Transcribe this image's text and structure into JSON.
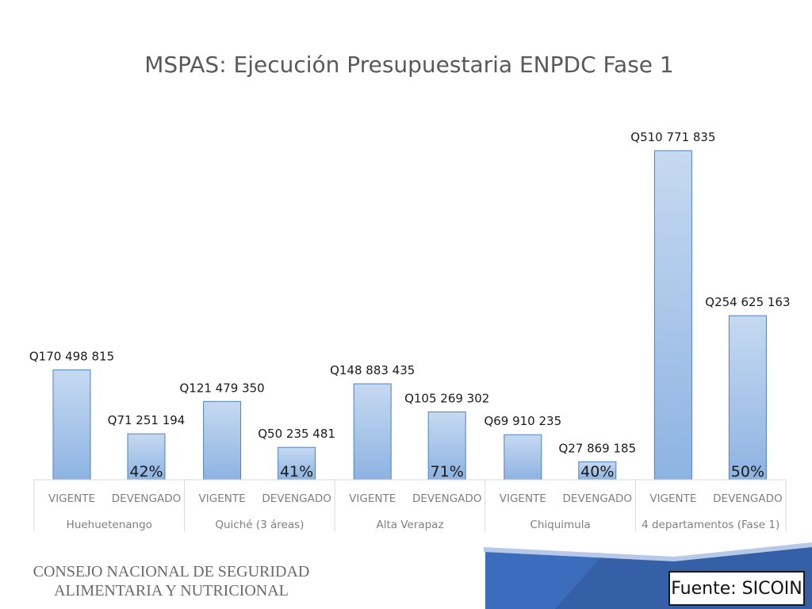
{
  "colors": {
    "bar_top": "#c6d9f1",
    "bar_bottom": "#8db3e2",
    "bar_stroke": "#4f81bd",
    "axis": "#d9d9d9",
    "footer_blue": "#1f4e9c"
  },
  "chart_data": {
    "type": "bar",
    "title": "MSPAS: Ejecución Presupuestaria ENPDC Fase 1",
    "xlabel": "",
    "ylabel": "",
    "ylim": [
      0,
      560000000
    ],
    "grid": false,
    "legend": "none",
    "groups": [
      {
        "name": "Huehuetenango",
        "categories": [
          "VIGENTE",
          "DEVENGADO"
        ],
        "values": [
          170498815,
          71251194
        ],
        "value_labels": [
          "Q170 498 815",
          "Q71 251 194"
        ],
        "percent": "42%"
      },
      {
        "name": "Quiché (3 áreas)",
        "categories": [
          "VIGENTE",
          "DEVENGADO"
        ],
        "values": [
          121479350,
          50235481
        ],
        "value_labels": [
          "Q121 479 350",
          "Q50 235 481"
        ],
        "percent": "41%"
      },
      {
        "name": "Alta Verapaz",
        "categories": [
          "VIGENTE",
          "DEVENGADO"
        ],
        "values": [
          148883435,
          105269302
        ],
        "value_labels": [
          "Q148 883 435",
          "Q105 269 302"
        ],
        "percent": "71%"
      },
      {
        "name": "Chiquimula",
        "categories": [
          "VIGENTE",
          "DEVENGADO"
        ],
        "values": [
          69910235,
          27869185
        ],
        "value_labels": [
          "Q69 910 235",
          "Q27 869 185"
        ],
        "percent": "40%"
      },
      {
        "name": "4 departamentos (Fase 1)",
        "categories": [
          "VIGENTE",
          "DEVENGADO"
        ],
        "values": [
          510771835,
          254625163
        ],
        "value_labels": [
          "Q510 771 835",
          "Q254 625 163"
        ],
        "percent": "50%"
      }
    ]
  },
  "footer": {
    "org_line1": "CONSEJO NACIONAL DE SEGURIDAD",
    "org_line2": "ALIMENTARIA Y NUTRICIONAL",
    "source": "Fuente: SICOIN"
  }
}
